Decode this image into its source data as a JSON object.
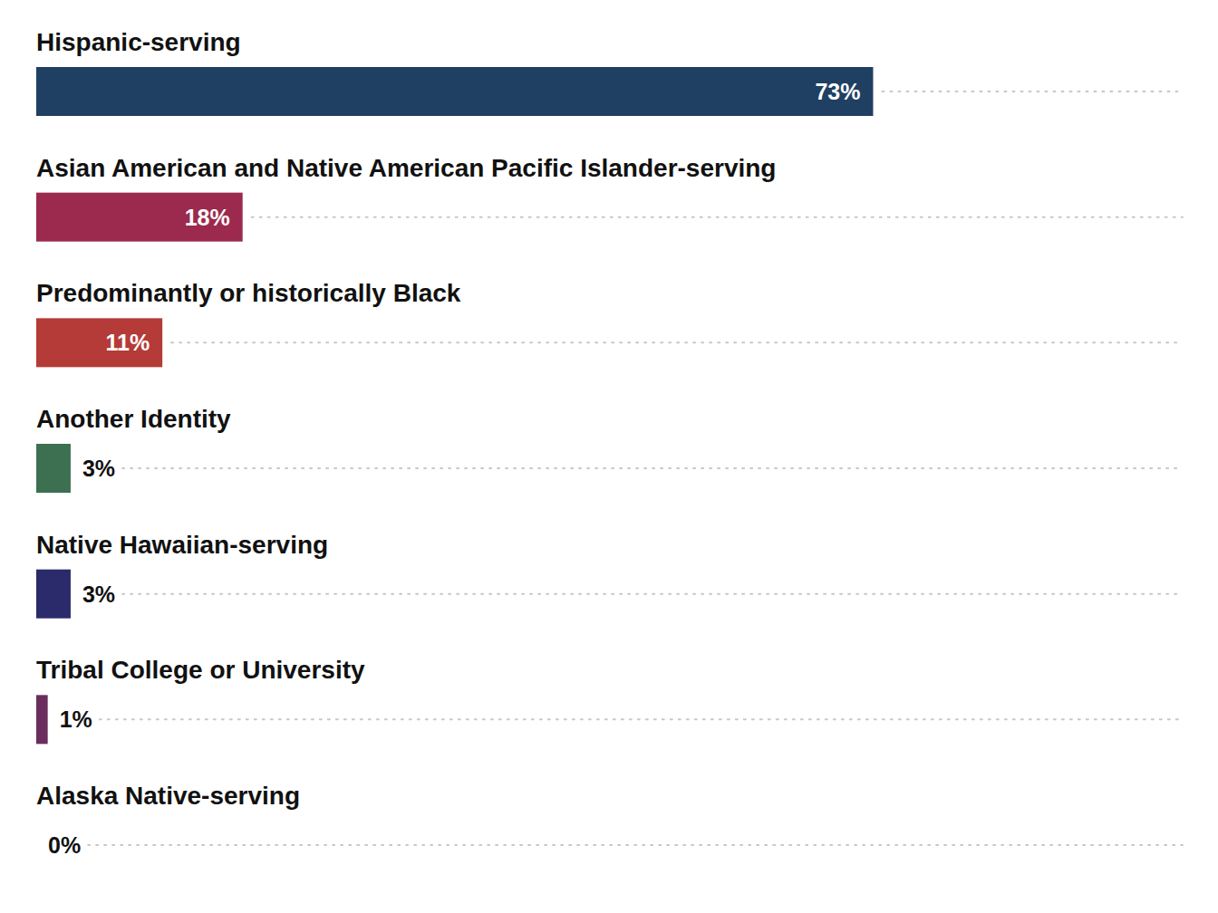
{
  "chart_data": {
    "type": "bar",
    "orientation": "horizontal",
    "categories": [
      "Hispanic-serving",
      "Asian American and Native American Pacific Islander-serving",
      "Predominantly or historically Black",
      "Another Identity",
      "Native Hawaiian-serving",
      "Tribal College or University",
      "Alaska Native-serving"
    ],
    "values": [
      73,
      18,
      11,
      3,
      3,
      1,
      0
    ],
    "value_labels": [
      "73%",
      "18%",
      "11%",
      "3%",
      "3%",
      "1%",
      "0%"
    ],
    "colors": [
      "#1f3f63",
      "#9b2a4e",
      "#b43b37",
      "#3d7050",
      "#2b2a6b",
      "#6b2d5e",
      "#555555"
    ],
    "xlim": [
      0,
      100
    ],
    "tick_labels": false,
    "data_labels": true,
    "grid": false
  }
}
